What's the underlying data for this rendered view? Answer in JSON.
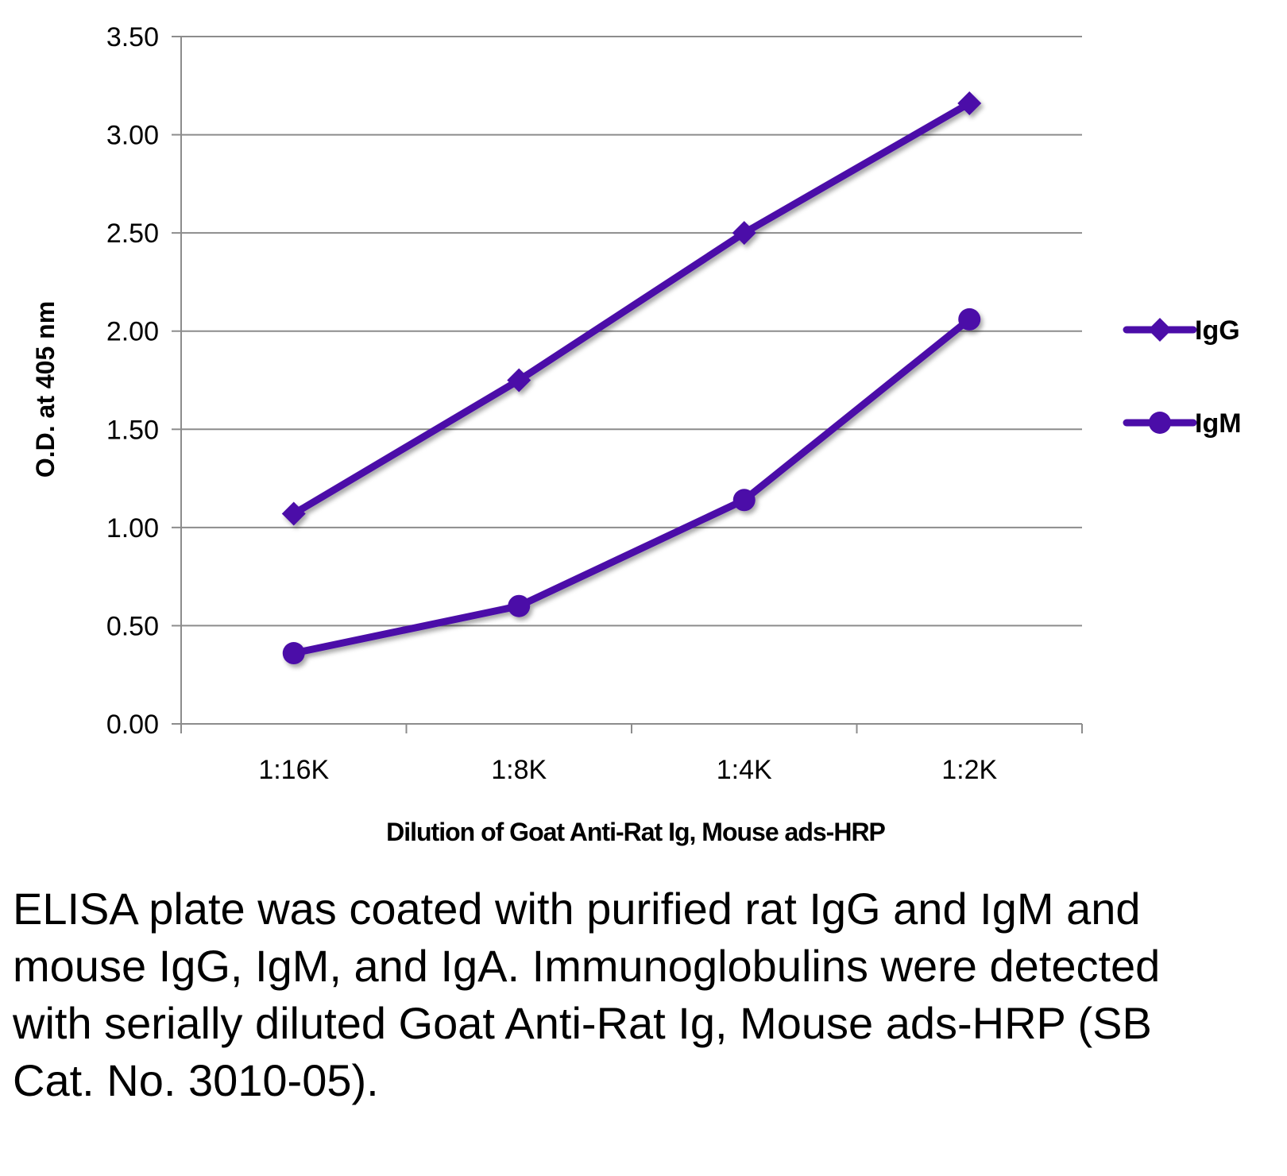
{
  "chart_data": {
    "type": "line",
    "title": "",
    "xlabel": "Dilution of Goat Anti-Rat Ig, Mouse ads-HRP",
    "ylabel": "O.D. at 405 nm",
    "categories": [
      "1:16K",
      "1:8K",
      "1:4K",
      "1:2K"
    ],
    "ylim": [
      0,
      3.5
    ],
    "yticks": [
      "0.00",
      "0.50",
      "1.00",
      "1.50",
      "2.00",
      "2.50",
      "3.00",
      "3.50"
    ],
    "grid": true,
    "legend_position": "right",
    "series": [
      {
        "name": "IgG",
        "marker": "diamond",
        "color": "#4B0DA8",
        "values": [
          1.07,
          1.75,
          2.5,
          3.16
        ]
      },
      {
        "name": "IgM",
        "marker": "circle",
        "color": "#4B0DA8",
        "values": [
          0.36,
          0.6,
          1.14,
          2.06
        ]
      }
    ]
  },
  "caption": "ELISA plate was coated with purified rat IgG and IgM and mouse IgG, IgM, and IgA. Immunoglobulins were detected with serially diluted Goat Anti-Rat Ig, Mouse ads-HRP (SB Cat. No. 3010-05)."
}
